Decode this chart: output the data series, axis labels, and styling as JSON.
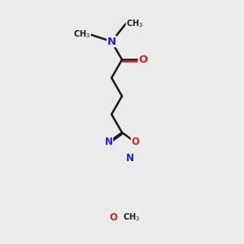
{
  "bg_color": "#ebebeb",
  "bond_color": "#1a1a1a",
  "N_color": "#2222cc",
  "O_color": "#cc2222",
  "lw": 1.8,
  "fs": 8.5,
  "figsize": [
    3.0,
    3.0
  ],
  "dpi": 100,
  "xlim": [
    -2.5,
    2.5
  ],
  "ylim": [
    -4.2,
    2.8
  ]
}
